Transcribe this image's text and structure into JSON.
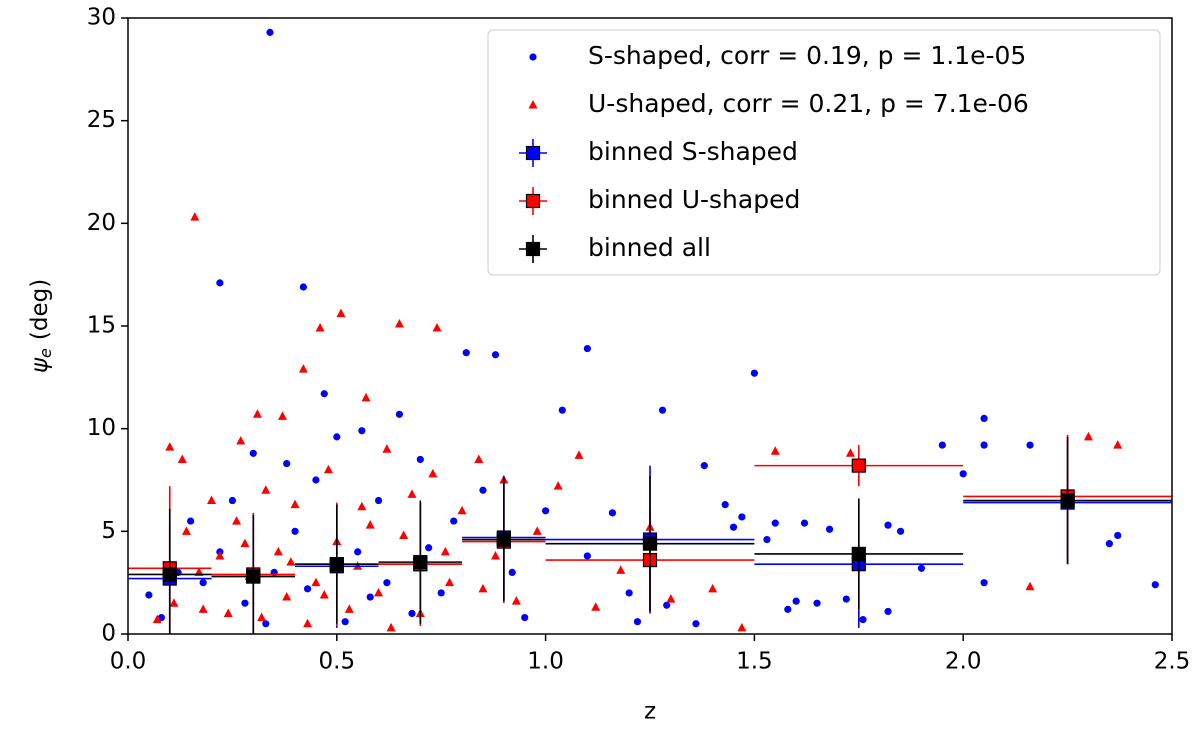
{
  "chart_data": {
    "type": "scatter",
    "x_label": "z",
    "y_label": {
      "symbol": "ψ",
      "subscript": "e",
      "unit": "(deg)"
    },
    "xlim": [
      0,
      2.5
    ],
    "ylim": [
      0,
      30
    ],
    "xticks": [
      {
        "value": 0,
        "label": "0.0"
      },
      0.5,
      {
        "value": 1,
        "label": "1.0"
      },
      1.5,
      {
        "value": 2,
        "label": "2.0"
      },
      2.5
    ],
    "yticks": [
      0,
      5,
      10,
      15,
      20,
      25,
      30
    ],
    "legend": "upper right",
    "series": [
      {
        "name": "S-shaped, corr = 0.19, p = 1.1e-05",
        "color": "#0000ff",
        "marker": "circle",
        "x": [
          0.34,
          0.22,
          0.42,
          0.81,
          0.88,
          1.1,
          1.5,
          0.47,
          0.56,
          1.28,
          1.04,
          2.05,
          2.05,
          1.95,
          2.16,
          2.37,
          2.35,
          2.46,
          2.05,
          1.85,
          1.82,
          1.68,
          1.62,
          1.55,
          1.53,
          1.6,
          1.65,
          1.58,
          1.72,
          1.82,
          1.38,
          1.43,
          1.47,
          1.45,
          1.36,
          1.29,
          1.2,
          1.1,
          1.0,
          0.95,
          0.92,
          0.85,
          0.78,
          0.75,
          0.7,
          0.65,
          0.6,
          0.55,
          0.5,
          0.45,
          0.4,
          0.38,
          0.35,
          0.3,
          0.28,
          0.25,
          0.22,
          0.18,
          0.15,
          0.12,
          0.05,
          0.08,
          0.62,
          0.68,
          0.52,
          0.43,
          0.33,
          0.72,
          0.58,
          1.16,
          1.76,
          1.9,
          1.22,
          2.0
        ],
        "values": [
          29.3,
          17.1,
          16.9,
          13.7,
          13.6,
          13.9,
          12.7,
          11.7,
          9.9,
          10.9,
          10.9,
          10.5,
          9.2,
          9.2,
          9.2,
          4.8,
          4.4,
          2.4,
          2.5,
          5.0,
          5.3,
          5.1,
          5.4,
          5.4,
          4.6,
          1.6,
          1.5,
          1.2,
          1.7,
          1.1,
          8.2,
          6.3,
          5.7,
          5.2,
          0.5,
          1.4,
          2.0,
          3.8,
          6.0,
          0.8,
          3.0,
          7.0,
          5.5,
          2.0,
          8.5,
          10.7,
          6.5,
          4.0,
          9.6,
          7.5,
          5.0,
          8.3,
          3.0,
          8.8,
          1.5,
          6.5,
          4.0,
          2.5,
          5.5,
          3.0,
          1.9,
          0.8,
          2.5,
          1.0,
          0.6,
          2.2,
          0.5,
          4.2,
          1.8,
          5.9,
          0.7,
          3.2,
          0.6,
          7.8
        ]
      },
      {
        "name": "U-shaped, corr = 0.21, p = 7.1e-06",
        "color": "#ff0000",
        "marker": "triangle",
        "x": [
          0.16,
          0.51,
          0.46,
          0.65,
          0.74,
          0.42,
          0.57,
          0.31,
          0.37,
          0.27,
          0.1,
          0.13,
          1.08,
          1.55,
          1.73,
          2.3,
          2.37,
          2.16,
          1.47,
          1.3,
          1.4,
          1.18,
          1.12,
          1.03,
          0.98,
          0.93,
          0.88,
          0.84,
          0.8,
          0.77,
          0.73,
          0.7,
          0.66,
          0.62,
          0.6,
          0.56,
          0.53,
          0.5,
          0.48,
          0.45,
          0.43,
          0.4,
          0.38,
          0.36,
          0.33,
          0.32,
          0.29,
          0.26,
          0.24,
          0.22,
          0.2,
          0.18,
          0.17,
          0.14,
          0.11,
          0.07,
          0.63,
          0.55,
          0.47,
          0.39,
          0.28,
          0.76,
          0.68,
          0.58,
          0.85,
          0.9,
          1.25
        ],
        "values": [
          20.3,
          15.6,
          14.9,
          15.1,
          14.9,
          12.9,
          11.5,
          10.7,
          10.6,
          9.4,
          9.1,
          8.5,
          8.7,
          8.9,
          8.8,
          9.6,
          9.2,
          2.3,
          0.3,
          1.7,
          2.2,
          3.1,
          1.3,
          7.2,
          5.0,
          1.6,
          3.8,
          8.5,
          6.0,
          2.5,
          7.8,
          1.0,
          4.8,
          9.0,
          2.0,
          6.2,
          1.2,
          4.5,
          8.0,
          2.5,
          0.5,
          6.3,
          1.8,
          4.0,
          7.0,
          0.8,
          2.8,
          5.5,
          1.0,
          3.8,
          6.5,
          1.2,
          3.0,
          5.0,
          1.5,
          0.7,
          0.3,
          3.3,
          1.9,
          3.5,
          4.4,
          4.0,
          6.8,
          5.3,
          2.2,
          7.5,
          5.2
        ]
      },
      {
        "name": "binned S-shaped",
        "color": "#0000ff",
        "marker": "square",
        "x": [
          0.1,
          0.3,
          0.5,
          0.7,
          0.9,
          1.25,
          1.75,
          2.25
        ],
        "xerr": [
          0.1,
          0.1,
          0.1,
          0.1,
          0.1,
          0.25,
          0.25,
          0.25
        ],
        "values": [
          2.7,
          2.8,
          3.3,
          3.4,
          4.7,
          4.6,
          3.4,
          6.4
        ],
        "yerr": [
          2.6,
          3.0,
          3.0,
          3.0,
          3.0,
          3.6,
          3.1,
          3.0
        ]
      },
      {
        "name": "binned U-shaped",
        "color": "#ff0000",
        "marker": "square",
        "x": [
          0.1,
          0.3,
          0.5,
          0.7,
          0.9,
          1.25,
          1.75,
          2.25
        ],
        "xerr": [
          0.1,
          0.1,
          0.1,
          0.1,
          0.1,
          0.25,
          0.25,
          0.25
        ],
        "values": [
          3.2,
          2.9,
          3.4,
          3.4,
          4.5,
          3.6,
          8.2,
          6.7
        ],
        "yerr": [
          4.0,
          3.0,
          3.0,
          3.0,
          3.0,
          2.5,
          1.0,
          3.0
        ]
      },
      {
        "name": "binned all",
        "color": "#000000",
        "marker": "square",
        "x": [
          0.1,
          0.3,
          0.5,
          0.7,
          0.9,
          1.25,
          1.75,
          2.25
        ],
        "xerr": [
          0.1,
          0.1,
          0.1,
          0.1,
          0.1,
          0.25,
          0.25,
          0.25
        ],
        "values": [
          2.9,
          2.8,
          3.4,
          3.5,
          4.6,
          4.4,
          3.9,
          6.5
        ],
        "yerr": [
          3.2,
          3.0,
          2.9,
          3.0,
          3.0,
          3.3,
          2.7,
          3.1
        ]
      }
    ]
  }
}
